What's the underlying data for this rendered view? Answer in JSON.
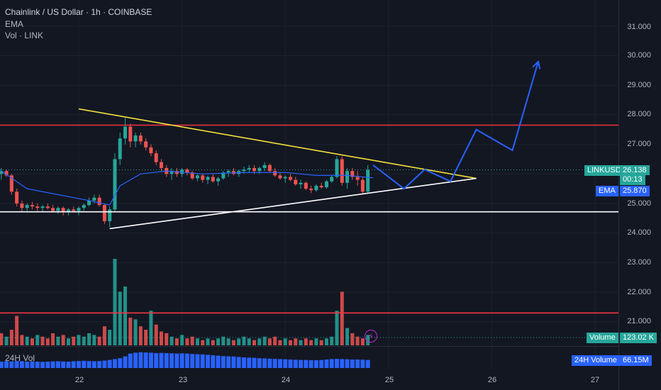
{
  "header": {
    "title": "Chainlink / US Dollar · 1h · COINBASE",
    "indicator1": "EMA",
    "indicator2": "Vol · LINK"
  },
  "colors": {
    "background": "#131722",
    "up": "#26a69a",
    "down": "#ef5350",
    "ema": "#2962ff",
    "projection": "#2962ff",
    "resistance": "#f23645",
    "trendline_upper": "#f5e13c",
    "trendline_lower": "#ffffff",
    "vol24": "#2962ff"
  },
  "y_axis": {
    "ticks": [
      "31.000",
      "30.000",
      "29.000",
      "28.000",
      "27.000",
      "26.000",
      "25.000",
      "24.000",
      "23.000",
      "22.000",
      "21.000"
    ]
  },
  "x_axis": {
    "ticks": [
      "22",
      "23",
      "24",
      "25",
      "26",
      "27"
    ]
  },
  "price_tags": {
    "symbol": "LINKUSD",
    "price": "26.138",
    "countdown": "00:13",
    "ema_label": "EMA",
    "ema_value": "25.870",
    "volume_label": "Volume",
    "volume_value": "123.02 K",
    "vol24_label": "24H Volume",
    "vol24_value": "66.15M"
  },
  "pane_labels": {
    "vol24": "24H Vol"
  },
  "chart_data": {
    "type": "candlestick",
    "symbol": "LINKUSD",
    "interval": "1h",
    "exchange": "COINBASE",
    "ylim": [
      20.0,
      32.0
    ],
    "x_range_days": [
      21.25,
      27.25
    ],
    "resistance_levels": [
      27.65,
      21.3
    ],
    "support_level": 24.72,
    "upper_trendline": [
      [
        22.0,
        28.2
      ],
      [
        25.85,
        25.85
      ]
    ],
    "lower_trendline": [
      [
        22.3,
        24.15
      ],
      [
        25.85,
        25.85
      ]
    ],
    "projection_path": [
      [
        24.85,
        26.3
      ],
      [
        25.15,
        25.5
      ],
      [
        25.35,
        26.15
      ],
      [
        25.6,
        25.75
      ],
      [
        25.85,
        27.5
      ],
      [
        26.2,
        26.8
      ],
      [
        26.45,
        29.8
      ]
    ],
    "ema_path": [
      [
        21.25,
        26.1
      ],
      [
        21.5,
        25.5
      ],
      [
        21.8,
        25.3
      ],
      [
        22.1,
        25.1
      ],
      [
        22.3,
        24.95
      ],
      [
        22.4,
        25.6
      ],
      [
        22.6,
        26.0
      ],
      [
        22.85,
        26.1
      ],
      [
        23.2,
        26.0
      ],
      [
        23.6,
        26.05
      ],
      [
        24.0,
        26.05
      ],
      [
        24.3,
        25.95
      ],
      [
        24.6,
        25.95
      ],
      [
        24.85,
        25.87
      ]
    ],
    "candles": [
      [
        21.25,
        26.0,
        26.2,
        25.8,
        26.1
      ],
      [
        21.3,
        26.1,
        26.15,
        25.9,
        25.95
      ],
      [
        21.35,
        25.95,
        26.0,
        25.3,
        25.4
      ],
      [
        21.4,
        25.4,
        25.5,
        24.9,
        25.0
      ],
      [
        21.45,
        25.0,
        25.1,
        24.7,
        24.85
      ],
      [
        21.5,
        24.85,
        25.0,
        24.75,
        24.95
      ],
      [
        21.55,
        24.95,
        25.05,
        24.8,
        24.9
      ],
      [
        21.6,
        24.9,
        25.0,
        24.75,
        24.85
      ],
      [
        21.65,
        24.85,
        24.95,
        24.7,
        24.9
      ],
      [
        21.7,
        24.9,
        25.0,
        24.8,
        24.85
      ],
      [
        21.75,
        24.85,
        24.95,
        24.7,
        24.75
      ],
      [
        21.8,
        24.75,
        24.9,
        24.65,
        24.85
      ],
      [
        21.85,
        24.85,
        24.9,
        24.6,
        24.7
      ],
      [
        21.9,
        24.7,
        24.85,
        24.6,
        24.8
      ],
      [
        21.95,
        24.8,
        24.9,
        24.7,
        24.75
      ],
      [
        22.0,
        24.75,
        24.9,
        24.6,
        24.85
      ],
      [
        22.05,
        24.85,
        25.0,
        24.75,
        24.95
      ],
      [
        22.1,
        24.95,
        25.2,
        24.9,
        25.1
      ],
      [
        22.15,
        25.1,
        25.3,
        25.0,
        25.2
      ],
      [
        22.2,
        25.2,
        25.3,
        24.9,
        24.95
      ],
      [
        22.25,
        24.95,
        25.0,
        24.3,
        24.4
      ],
      [
        22.3,
        24.4,
        24.9,
        24.2,
        24.8
      ],
      [
        22.35,
        24.8,
        26.7,
        24.7,
        26.5
      ],
      [
        22.4,
        26.5,
        27.4,
        26.3,
        27.2
      ],
      [
        22.45,
        27.2,
        27.9,
        27.0,
        27.6
      ],
      [
        22.5,
        27.6,
        27.7,
        26.9,
        27.1
      ],
      [
        22.55,
        27.1,
        27.4,
        26.9,
        27.3
      ],
      [
        22.6,
        27.3,
        27.4,
        27.0,
        27.1
      ],
      [
        22.65,
        27.1,
        27.2,
        26.8,
        26.9
      ],
      [
        22.7,
        26.9,
        27.0,
        26.6,
        26.7
      ],
      [
        22.75,
        26.7,
        26.8,
        26.3,
        26.4
      ],
      [
        22.8,
        26.4,
        26.5,
        26.1,
        26.2
      ],
      [
        22.85,
        26.2,
        26.3,
        25.9,
        26.0
      ],
      [
        22.9,
        26.0,
        26.2,
        25.8,
        26.1
      ],
      [
        22.95,
        26.1,
        26.2,
        25.9,
        26.0
      ],
      [
        23.0,
        26.0,
        26.2,
        25.9,
        26.15
      ],
      [
        23.05,
        26.15,
        26.2,
        25.95,
        26.05
      ],
      [
        23.1,
        26.05,
        26.1,
        25.8,
        25.85
      ],
      [
        23.15,
        25.85,
        26.0,
        25.75,
        25.95
      ],
      [
        23.2,
        25.95,
        26.0,
        25.7,
        25.8
      ],
      [
        23.25,
        25.8,
        25.95,
        25.65,
        25.9
      ],
      [
        23.3,
        25.9,
        26.0,
        25.7,
        25.75
      ],
      [
        23.35,
        25.75,
        25.9,
        25.6,
        25.85
      ],
      [
        23.4,
        25.85,
        26.1,
        25.8,
        26.05
      ],
      [
        23.45,
        26.05,
        26.15,
        25.9,
        26.1
      ],
      [
        23.5,
        26.1,
        26.2,
        25.95,
        26.0
      ],
      [
        23.55,
        26.0,
        26.15,
        25.9,
        26.1
      ],
      [
        23.6,
        26.1,
        26.25,
        26.0,
        26.15
      ],
      [
        23.65,
        26.15,
        26.3,
        26.05,
        26.2
      ],
      [
        23.7,
        26.2,
        26.3,
        26.0,
        26.1
      ],
      [
        23.75,
        26.1,
        26.25,
        26.0,
        26.2
      ],
      [
        23.8,
        26.2,
        26.4,
        26.1,
        26.3
      ],
      [
        23.85,
        26.3,
        26.35,
        26.05,
        26.1
      ],
      [
        23.9,
        26.1,
        26.2,
        25.9,
        25.95
      ],
      [
        23.95,
        25.95,
        26.05,
        25.8,
        25.85
      ],
      [
        24.0,
        25.85,
        25.95,
        25.7,
        25.9
      ],
      [
        24.05,
        25.9,
        26.0,
        25.75,
        25.8
      ],
      [
        24.1,
        25.8,
        25.9,
        25.6,
        25.65
      ],
      [
        24.15,
        25.65,
        25.8,
        25.5,
        25.7
      ],
      [
        24.2,
        25.7,
        25.75,
        25.45,
        25.5
      ],
      [
        24.25,
        25.5,
        25.6,
        25.35,
        25.45
      ],
      [
        24.3,
        25.45,
        25.65,
        25.4,
        25.6
      ],
      [
        24.35,
        25.6,
        25.7,
        25.5,
        25.55
      ],
      [
        24.4,
        25.55,
        25.8,
        25.5,
        25.75
      ],
      [
        24.45,
        25.75,
        25.95,
        25.7,
        25.9
      ],
      [
        24.5,
        25.9,
        26.6,
        25.85,
        26.5
      ],
      [
        24.55,
        26.5,
        26.6,
        25.6,
        25.7
      ],
      [
        24.6,
        25.7,
        26.2,
        25.5,
        26.1
      ],
      [
        24.65,
        26.1,
        26.2,
        25.8,
        25.9
      ],
      [
        24.7,
        25.9,
        26.1,
        25.6,
        25.8
      ],
      [
        24.75,
        25.8,
        25.9,
        25.3,
        25.4
      ],
      [
        24.8,
        25.4,
        26.3,
        25.35,
        26.14
      ]
    ],
    "volume_bars": [
      [
        21.25,
        0.14,
        "down"
      ],
      [
        21.3,
        0.1,
        "up"
      ],
      [
        21.35,
        0.18,
        "down"
      ],
      [
        21.4,
        0.34,
        "down"
      ],
      [
        21.45,
        0.12,
        "down"
      ],
      [
        21.5,
        0.1,
        "up"
      ],
      [
        21.55,
        0.08,
        "down"
      ],
      [
        21.6,
        0.12,
        "up"
      ],
      [
        21.65,
        0.1,
        "down"
      ],
      [
        21.7,
        0.08,
        "down"
      ],
      [
        21.75,
        0.14,
        "down"
      ],
      [
        21.8,
        0.1,
        "up"
      ],
      [
        21.85,
        0.12,
        "down"
      ],
      [
        21.9,
        0.08,
        "up"
      ],
      [
        21.95,
        0.1,
        "down"
      ],
      [
        22.0,
        0.12,
        "up"
      ],
      [
        22.05,
        0.1,
        "up"
      ],
      [
        22.1,
        0.14,
        "up"
      ],
      [
        22.15,
        0.12,
        "up"
      ],
      [
        22.2,
        0.1,
        "down"
      ],
      [
        22.25,
        0.22,
        "down"
      ],
      [
        22.3,
        0.18,
        "up"
      ],
      [
        22.35,
        1.0,
        "up"
      ],
      [
        22.4,
        0.62,
        "up"
      ],
      [
        22.45,
        0.68,
        "up"
      ],
      [
        22.5,
        0.32,
        "down"
      ],
      [
        22.55,
        0.3,
        "up"
      ],
      [
        22.6,
        0.22,
        "down"
      ],
      [
        22.65,
        0.18,
        "down"
      ],
      [
        22.7,
        0.4,
        "up"
      ],
      [
        22.75,
        0.24,
        "down"
      ],
      [
        22.8,
        0.16,
        "down"
      ],
      [
        22.85,
        0.14,
        "down"
      ],
      [
        22.9,
        0.1,
        "up"
      ],
      [
        22.95,
        0.08,
        "down"
      ],
      [
        23.0,
        0.12,
        "up"
      ],
      [
        23.05,
        0.08,
        "down"
      ],
      [
        23.1,
        0.1,
        "down"
      ],
      [
        23.15,
        0.08,
        "up"
      ],
      [
        23.2,
        0.06,
        "down"
      ],
      [
        23.25,
        0.08,
        "up"
      ],
      [
        23.3,
        0.06,
        "down"
      ],
      [
        23.35,
        0.08,
        "up"
      ],
      [
        23.4,
        0.1,
        "up"
      ],
      [
        23.45,
        0.08,
        "up"
      ],
      [
        23.5,
        0.06,
        "down"
      ],
      [
        23.55,
        0.08,
        "up"
      ],
      [
        23.6,
        0.1,
        "up"
      ],
      [
        23.65,
        0.08,
        "up"
      ],
      [
        23.7,
        0.06,
        "down"
      ],
      [
        23.75,
        0.08,
        "up"
      ],
      [
        23.8,
        0.1,
        "up"
      ],
      [
        23.85,
        0.08,
        "down"
      ],
      [
        23.9,
        0.1,
        "down"
      ],
      [
        23.95,
        0.06,
        "down"
      ],
      [
        24.0,
        0.08,
        "up"
      ],
      [
        24.05,
        0.06,
        "down"
      ],
      [
        24.1,
        0.08,
        "down"
      ],
      [
        24.15,
        0.06,
        "up"
      ],
      [
        24.2,
        0.08,
        "down"
      ],
      [
        24.25,
        0.06,
        "down"
      ],
      [
        24.3,
        0.08,
        "up"
      ],
      [
        24.35,
        0.06,
        "down"
      ],
      [
        24.4,
        0.08,
        "up"
      ],
      [
        24.45,
        0.1,
        "up"
      ],
      [
        24.5,
        0.4,
        "up"
      ],
      [
        24.55,
        0.62,
        "down"
      ],
      [
        24.6,
        0.2,
        "up"
      ],
      [
        24.65,
        0.14,
        "down"
      ],
      [
        24.7,
        0.1,
        "down"
      ],
      [
        24.75,
        0.08,
        "down"
      ],
      [
        24.8,
        0.12,
        "up"
      ]
    ],
    "vol24_bars": [
      0.3,
      0.32,
      0.31,
      0.33,
      0.32,
      0.3,
      0.31,
      0.3,
      0.29,
      0.3,
      0.31,
      0.32,
      0.31,
      0.3,
      0.32,
      0.33,
      0.34,
      0.33,
      0.32,
      0.33,
      0.35,
      0.38,
      0.42,
      0.46,
      0.55,
      0.68,
      0.72,
      0.74,
      0.73,
      0.72,
      0.7,
      0.71,
      0.7,
      0.69,
      0.68,
      0.69,
      0.68,
      0.66,
      0.65,
      0.64,
      0.62,
      0.6,
      0.58,
      0.56,
      0.55,
      0.54,
      0.52,
      0.5,
      0.49,
      0.48,
      0.46,
      0.45,
      0.44,
      0.43,
      0.42,
      0.41,
      0.4,
      0.39,
      0.38,
      0.38,
      0.37,
      0.37,
      0.38,
      0.4,
      0.42,
      0.43,
      0.42,
      0.41,
      0.4,
      0.4,
      0.39,
      0.38
    ]
  }
}
